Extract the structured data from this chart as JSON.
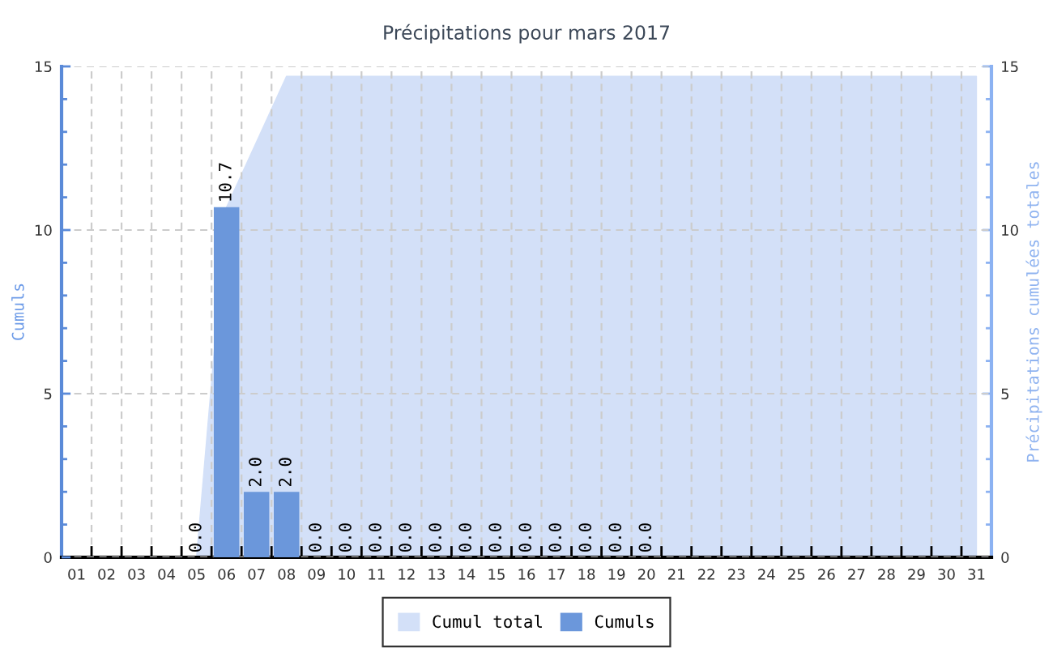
{
  "chart_data": {
    "type": "bar",
    "title": "Précipitations pour mars 2017",
    "ylabel": "Cumuls",
    "y2label": "Précipitations cumulées totales",
    "categories": [
      "01",
      "02",
      "03",
      "04",
      "05",
      "06",
      "07",
      "08",
      "09",
      "10",
      "11",
      "12",
      "13",
      "14",
      "15",
      "16",
      "17",
      "18",
      "19",
      "20",
      "21",
      "22",
      "23",
      "24",
      "25",
      "26",
      "27",
      "28",
      "29",
      "30",
      "31"
    ],
    "series": [
      {
        "name": "Cumul total",
        "type": "area",
        "axis": "y2",
        "color": "#d3e0f8",
        "values": [
          null,
          null,
          null,
          null,
          0,
          10.7,
          12.7,
          14.7,
          14.7,
          14.7,
          14.7,
          14.7,
          14.7,
          14.7,
          14.7,
          14.7,
          14.7,
          14.7,
          14.7,
          14.7,
          14.7,
          14.7,
          14.7,
          14.7,
          14.7,
          14.7,
          14.7,
          14.7,
          14.7,
          14.7,
          14.7
        ]
      },
      {
        "name": "Cumuls",
        "color": "#6b97db",
        "values": [
          null,
          null,
          null,
          null,
          0,
          10.7,
          2,
          2,
          0,
          0,
          0,
          0,
          0,
          0,
          0,
          0,
          0,
          0,
          0,
          0,
          null,
          null,
          null,
          null,
          null,
          null,
          null,
          null,
          null,
          null,
          null
        ],
        "value_labels": [
          null,
          null,
          null,
          null,
          "0.0",
          "10.7",
          "2.0",
          "2.0",
          "0.0",
          "0.0",
          "0.0",
          "0.0",
          "0.0",
          "0.0",
          "0.0",
          "0.0",
          "0.0",
          "0.0",
          "0.0",
          "0.0",
          null,
          null,
          null,
          null,
          null,
          null,
          null,
          null,
          null,
          null,
          null
        ]
      }
    ],
    "ylim": [
      0,
      15
    ],
    "yticks": [
      0,
      {
        "value": 1,
        "label": null
      },
      {
        "value": 2,
        "label": null
      },
      {
        "value": 3,
        "label": null
      },
      {
        "value": 4,
        "label": null
      },
      5,
      {
        "value": 6,
        "label": null
      },
      {
        "value": 7,
        "label": null
      },
      {
        "value": 8,
        "label": null
      },
      {
        "value": 9,
        "label": null
      },
      10,
      {
        "value": 11,
        "label": null
      },
      {
        "value": 12,
        "label": null
      },
      {
        "value": 13,
        "label": null
      },
      {
        "value": 14,
        "label": null
      },
      15
    ],
    "y2lim": [
      0,
      15
    ],
    "y2ticks": [
      0,
      {
        "value": 1,
        "label": null
      },
      {
        "value": 2,
        "label": null
      },
      {
        "value": 3,
        "label": null
      },
      {
        "value": 4,
        "label": null
      },
      5,
      {
        "value": 6,
        "label": null
      },
      {
        "value": 7,
        "label": null
      },
      {
        "value": 8,
        "label": null
      },
      {
        "value": 9,
        "label": null
      },
      10,
      {
        "value": 11,
        "label": null
      },
      {
        "value": 12,
        "label": null
      },
      {
        "value": 13,
        "label": null
      },
      {
        "value": 14,
        "label": null
      },
      15
    ],
    "grid": true,
    "legend": "bottom"
  }
}
